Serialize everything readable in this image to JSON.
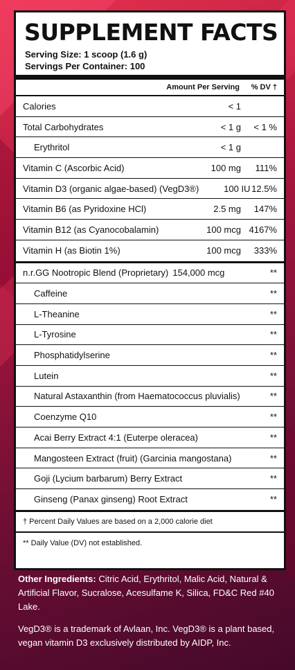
{
  "title": "SUPPLEMENT FACTS",
  "serving_size": "Serving Size: 1 scoop (1.6 g)",
  "servings_per_container": "Servings Per Container: 100",
  "header": {
    "amount": "Amount Per Serving",
    "dv": "% DV †"
  },
  "rows": [
    {
      "name": "Calories",
      "amount": "< 1",
      "dv": ""
    },
    {
      "name": "Total Carbohydrates",
      "amount": "< 1 g",
      "dv": "< 1 %"
    },
    {
      "name": "Erythritol",
      "amount": "< 1 g",
      "dv": ""
    },
    {
      "name": "Vitamin C (Ascorbic Acid)",
      "amount": "100 mg",
      "dv": "111%"
    },
    {
      "name": "Vitamin D3 (organic algae-based) (VegD3®)",
      "amount": "100 IU",
      "dv": "12.5%"
    },
    {
      "name": "Vitamin B6 (as Pyridoxine HCl)",
      "amount": "2.5 mg",
      "dv": "147%"
    },
    {
      "name": "Vitamin B12 (as Cyanocobalamin)",
      "amount": "100 mcg",
      "dv": "4167%"
    },
    {
      "name": "Vitamin H (as Biotin 1%)",
      "amount": "100 mcg",
      "dv": "333%"
    }
  ],
  "blend": {
    "name": "n.r.GG Nootropic Blend (Proprietary)",
    "amount": "154,000 mcg",
    "dv": "**"
  },
  "blend_items": [
    {
      "name": "Caffeine",
      "dv": "**"
    },
    {
      "name": "L-Theanine",
      "dv": "**"
    },
    {
      "name": "L-Tyrosine",
      "dv": "**"
    },
    {
      "name": "Phosphatidylserine",
      "dv": "**"
    },
    {
      "name": "Lutein",
      "dv": "**"
    },
    {
      "name": "Natural Astaxanthin (from Haematococcus pluvialis)",
      "dv": "**"
    },
    {
      "name": "Coenzyme Q10",
      "dv": "**"
    },
    {
      "name": "Acai Berry Extract 4:1 (Euterpe oleracea)",
      "dv": "**"
    },
    {
      "name": "Mangosteen Extract (fruit) (Garcinia mangostana)",
      "dv": "**"
    },
    {
      "name": "Goji (Lycium barbarum) Berry Extract",
      "dv": "**"
    },
    {
      "name": "Ginseng (Panax ginseng) Root Extract",
      "dv": "**"
    }
  ],
  "footnote_dv": "† Percent Daily Values are based on a 2,000 calorie diet",
  "footnote_na": "** Daily Value (DV) not established.",
  "other_ingredients_label": "Other Ingredients:",
  "other_ingredients": "Citric Acid, Erythritol, Malic Acid, Natural & Artificial Flavor, Sucralose, Acesulfame K, Silica, FD&C Red #40 Lake.",
  "trademark": "VegD3® is a trademark of Avlaan, Inc. VegD3® is a plant based, vegan vitamin D3 exclusively distributed by AIDP, Inc."
}
